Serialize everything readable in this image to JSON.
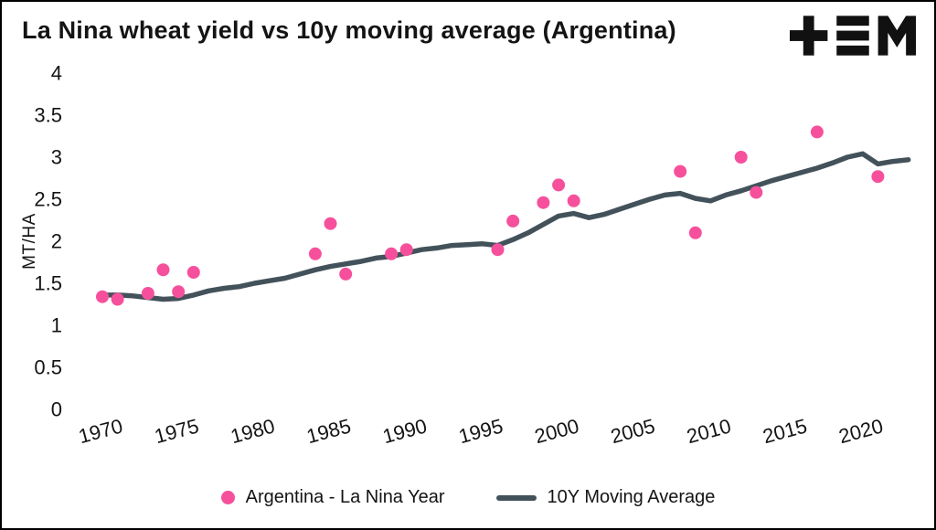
{
  "page": {
    "background": "#ffffff",
    "border_color": "#000000"
  },
  "header": {
    "title": "La Nina wheat yield vs 10y moving average (Argentina)",
    "logo": "tem-logo"
  },
  "chart_data": {
    "type": "scatter",
    "title": "La Nina wheat yield vs 10y moving average (Argentina)",
    "xlabel": "",
    "ylabel": "MT/HA",
    "ylim": [
      0,
      4
    ],
    "xlim": [
      1970,
      2023.8
    ],
    "yticks": [
      0,
      0.5,
      1,
      1.5,
      2,
      2.5,
      3,
      3.5,
      4
    ],
    "xticks": [
      1970,
      1975,
      1980,
      1985,
      1990,
      1995,
      2000,
      2005,
      2010,
      2015,
      2020
    ],
    "grid": false,
    "legend_position": "bottom",
    "series": [
      {
        "name": "Argentina - La Nina Year",
        "type": "scatter",
        "color": "#f6509c",
        "points": [
          [
            1970,
            1.34
          ],
          [
            1971,
            1.31
          ],
          [
            1973,
            1.38
          ],
          [
            1974,
            1.66
          ],
          [
            1975,
            1.4
          ],
          [
            1976,
            1.63
          ],
          [
            1984,
            1.85
          ],
          [
            1985,
            2.21
          ],
          [
            1986,
            1.61
          ],
          [
            1989,
            1.85
          ],
          [
            1990,
            1.9
          ],
          [
            1996,
            1.9
          ],
          [
            1997,
            2.24
          ],
          [
            1999,
            2.46
          ],
          [
            2000,
            2.67
          ],
          [
            2001,
            2.48
          ],
          [
            2008,
            2.83
          ],
          [
            2009,
            2.1
          ],
          [
            2012,
            3.0
          ],
          [
            2013,
            2.58
          ],
          [
            2017,
            3.3
          ],
          [
            2021,
            2.77
          ]
        ]
      },
      {
        "name": "10Y Moving Average",
        "type": "line",
        "color": "#43525a",
        "points": [
          [
            1970,
            1.36
          ],
          [
            1971,
            1.36
          ],
          [
            1972,
            1.35
          ],
          [
            1973,
            1.33
          ],
          [
            1974,
            1.31
          ],
          [
            1975,
            1.32
          ],
          [
            1976,
            1.36
          ],
          [
            1977,
            1.41
          ],
          [
            1978,
            1.44
          ],
          [
            1979,
            1.46
          ],
          [
            1980,
            1.5
          ],
          [
            1981,
            1.53
          ],
          [
            1982,
            1.56
          ],
          [
            1983,
            1.61
          ],
          [
            1984,
            1.66
          ],
          [
            1985,
            1.7
          ],
          [
            1986,
            1.73
          ],
          [
            1987,
            1.76
          ],
          [
            1988,
            1.8
          ],
          [
            1989,
            1.82
          ],
          [
            1990,
            1.86
          ],
          [
            1991,
            1.9
          ],
          [
            1992,
            1.92
          ],
          [
            1993,
            1.95
          ],
          [
            1994,
            1.96
          ],
          [
            1995,
            1.97
          ],
          [
            1996,
            1.95
          ],
          [
            1997,
            2.02
          ],
          [
            1998,
            2.1
          ],
          [
            1999,
            2.2
          ],
          [
            2000,
            2.3
          ],
          [
            2001,
            2.33
          ],
          [
            2002,
            2.28
          ],
          [
            2003,
            2.32
          ],
          [
            2004,
            2.38
          ],
          [
            2005,
            2.44
          ],
          [
            2006,
            2.5
          ],
          [
            2007,
            2.55
          ],
          [
            2008,
            2.57
          ],
          [
            2009,
            2.51
          ],
          [
            2010,
            2.48
          ],
          [
            2011,
            2.55
          ],
          [
            2012,
            2.6
          ],
          [
            2013,
            2.66
          ],
          [
            2014,
            2.72
          ],
          [
            2015,
            2.77
          ],
          [
            2016,
            2.82
          ],
          [
            2017,
            2.87
          ],
          [
            2018,
            2.93
          ],
          [
            2019,
            3.0
          ],
          [
            2020,
            3.04
          ],
          [
            2021,
            2.92
          ],
          [
            2022,
            2.95
          ],
          [
            2023,
            2.97
          ]
        ]
      }
    ],
    "legend": [
      "Argentina - La Nina Year",
      "10Y Moving Average"
    ]
  }
}
